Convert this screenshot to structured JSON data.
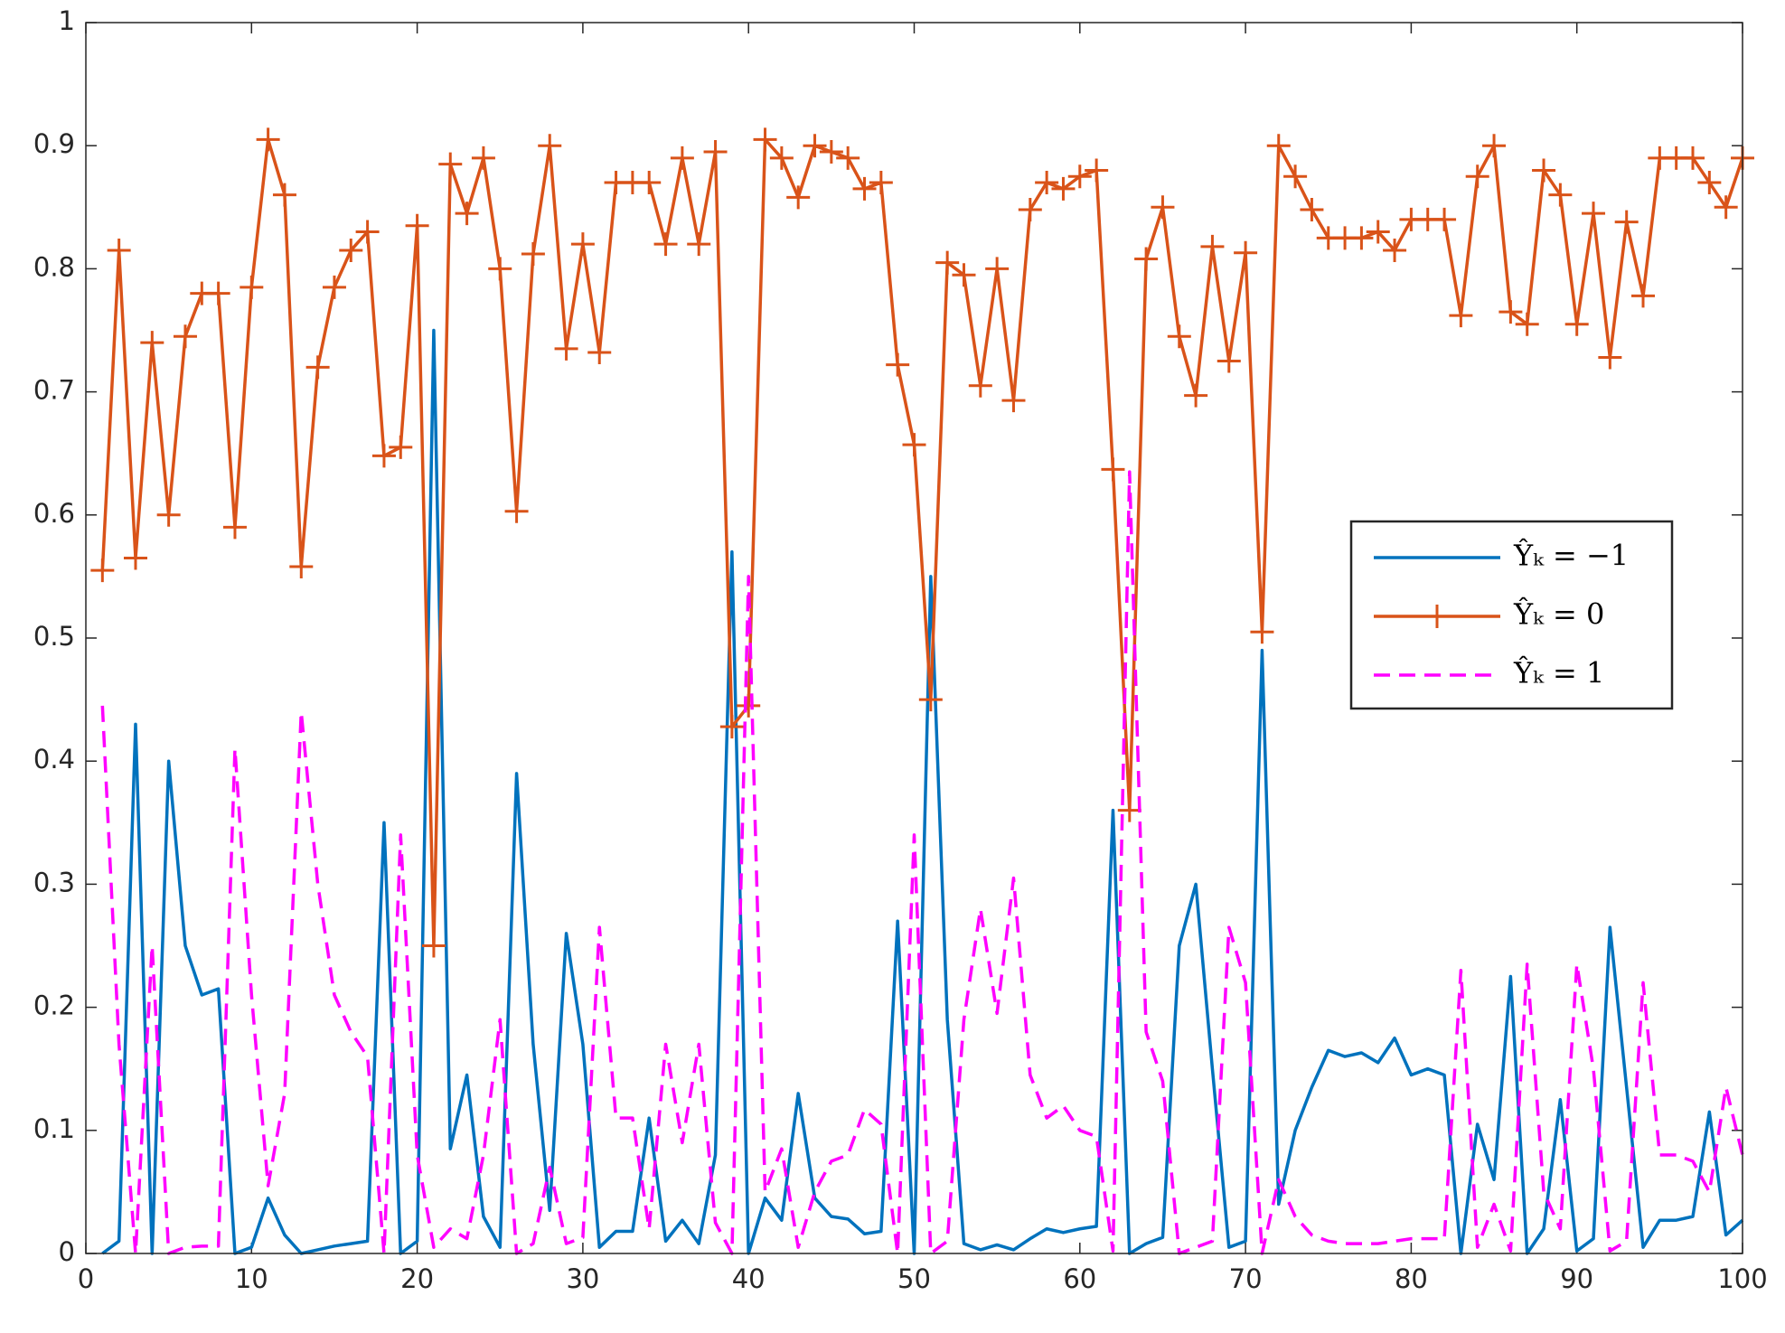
{
  "chart_data": {
    "type": "line",
    "x": [
      1,
      2,
      3,
      4,
      5,
      6,
      7,
      8,
      9,
      10,
      11,
      12,
      13,
      14,
      15,
      16,
      17,
      18,
      19,
      20,
      21,
      22,
      23,
      24,
      25,
      26,
      27,
      28,
      29,
      30,
      31,
      32,
      33,
      34,
      35,
      36,
      37,
      38,
      39,
      40,
      41,
      42,
      43,
      44,
      45,
      46,
      47,
      48,
      49,
      50,
      51,
      52,
      53,
      54,
      55,
      56,
      57,
      58,
      59,
      60,
      61,
      62,
      63,
      64,
      65,
      66,
      67,
      68,
      69,
      70,
      71,
      72,
      73,
      74,
      75,
      76,
      77,
      78,
      79,
      80,
      81,
      82,
      83,
      84,
      85,
      86,
      87,
      88,
      89,
      90,
      91,
      92,
      93,
      94,
      95,
      96,
      97,
      98,
      99,
      100
    ],
    "series": [
      {
        "name": "Ŷₖ = −1",
        "color": "#0072bd",
        "dash": false,
        "marker": null,
        "values": [
          0,
          0.01,
          0.43,
          0,
          0.4,
          0.25,
          0.21,
          0.215,
          0,
          0.005,
          0.045,
          0.015,
          0,
          0.003,
          0.006,
          0.008,
          0.01,
          0.35,
          0,
          0.01,
          0.75,
          0.085,
          0.145,
          0.03,
          0.005,
          0.39,
          0.17,
          0.035,
          0.26,
          0.17,
          0.005,
          0.018,
          0.018,
          0.11,
          0.01,
          0.027,
          0.008,
          0.08,
          0.57,
          0,
          0.045,
          0.027,
          0.13,
          0.045,
          0.03,
          0.028,
          0.016,
          0.018,
          0.27,
          0,
          0.55,
          0.19,
          0.008,
          0.003,
          0.007,
          0.003,
          0.012,
          0.02,
          0.017,
          0.02,
          0.022,
          0.36,
          0,
          0.008,
          0.013,
          0.25,
          0.3,
          0.15,
          0.005,
          0.01,
          0.49,
          0.04,
          0.1,
          0.135,
          0.165,
          0.16,
          0.163,
          0.155,
          0.175,
          0.145,
          0.15,
          0.145,
          0,
          0.105,
          0.06,
          0.225,
          0,
          0.02,
          0.125,
          0.002,
          0.012,
          0.265,
          0.135,
          0.005,
          0.027,
          0.027,
          0.03,
          0.115,
          0.015,
          0.027
        ]
      },
      {
        "name": "Ŷₖ = 0",
        "color": "#d95319",
        "dash": false,
        "marker": "+",
        "values": [
          0.555,
          0.815,
          0.565,
          0.74,
          0.6,
          0.745,
          0.78,
          0.78,
          0.59,
          0.785,
          0.905,
          0.86,
          0.558,
          0.72,
          0.785,
          0.815,
          0.83,
          0.648,
          0.655,
          0.835,
          0.25,
          0.885,
          0.845,
          0.89,
          0.8,
          0.603,
          0.812,
          0.9,
          0.735,
          0.82,
          0.732,
          0.87,
          0.87,
          0.87,
          0.82,
          0.89,
          0.82,
          0.895,
          0.428,
          0.445,
          0.905,
          0.89,
          0.858,
          0.9,
          0.895,
          0.89,
          0.865,
          0.87,
          0.722,
          0.657,
          0.45,
          0.805,
          0.795,
          0.705,
          0.8,
          0.693,
          0.848,
          0.87,
          0.865,
          0.875,
          0.88,
          0.637,
          0.36,
          0.808,
          0.85,
          0.745,
          0.697,
          0.818,
          0.725,
          0.813,
          0.505,
          0.9,
          0.875,
          0.848,
          0.825,
          0.825,
          0.825,
          0.83,
          0.815,
          0.84,
          0.84,
          0.84,
          0.762,
          0.875,
          0.9,
          0.765,
          0.755,
          0.88,
          0.86,
          0.755,
          0.845,
          0.728,
          0.838,
          0.778,
          0.89,
          0.89,
          0.89,
          0.87,
          0.85,
          0.89
        ]
      },
      {
        "name": "Ŷₖ = 1",
        "color": "#ff00ff",
        "dash": true,
        "marker": null,
        "values": [
          0.445,
          0.17,
          0,
          0.25,
          0,
          0.005,
          0.006,
          0.006,
          0.41,
          0.21,
          0.055,
          0.13,
          0.44,
          0.3,
          0.21,
          0.18,
          0.16,
          0,
          0.34,
          0.08,
          0.005,
          0.02,
          0.012,
          0.08,
          0.19,
          0,
          0.008,
          0.07,
          0.008,
          0.013,
          0.265,
          0.11,
          0.11,
          0.02,
          0.17,
          0.09,
          0.17,
          0.025,
          0,
          0.55,
          0.05,
          0.085,
          0.005,
          0.05,
          0.075,
          0.08,
          0.117,
          0.105,
          0,
          0.34,
          0,
          0.01,
          0.19,
          0.28,
          0.195,
          0.305,
          0.145,
          0.11,
          0.12,
          0.1,
          0.095,
          0.002,
          0.635,
          0.18,
          0.14,
          0,
          0.005,
          0.01,
          0.265,
          0.22,
          0,
          0.06,
          0.03,
          0.015,
          0.01,
          0.008,
          0.008,
          0.008,
          0.01,
          0.012,
          0.012,
          0.012,
          0.23,
          0.005,
          0.04,
          0.002,
          0.235,
          0.05,
          0.02,
          0.235,
          0.15,
          0.002,
          0.01,
          0.22,
          0.08,
          0.08,
          0.075,
          0.05,
          0.135,
          0.08
        ]
      }
    ],
    "xlim": [
      0,
      100
    ],
    "xticks": [
      0,
      10,
      20,
      30,
      40,
      50,
      60,
      70,
      80,
      90,
      100
    ],
    "ylim": [
      0,
      1
    ],
    "yticks": [
      0,
      0.1,
      0.2,
      0.3,
      0.4,
      0.5,
      0.6,
      0.7,
      0.8,
      0.9,
      1
    ],
    "grid": false,
    "legend": "right"
  }
}
